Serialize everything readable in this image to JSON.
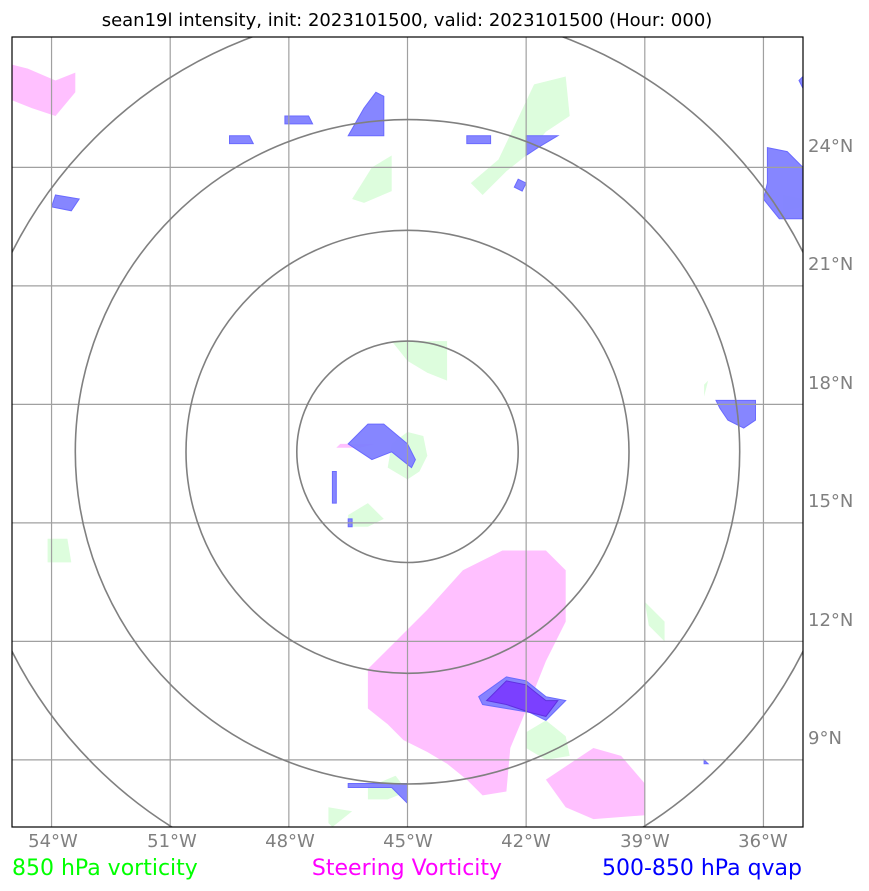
{
  "title": "sean19l intensity, init: 2023101500, valid: 2023101500 (Hour: 000)",
  "lon_labels": [
    "54°W",
    "51°W",
    "48°W",
    "45°W",
    "42°W",
    "39°W",
    "36°W"
  ],
  "lat_labels": [
    "24°N",
    "21°N",
    "18°N",
    "15°N",
    "12°N",
    "9°N"
  ],
  "legend": {
    "vort850": {
      "label": "850 hPa vorticity",
      "color": "#00ff00"
    },
    "steering": {
      "label": "Steering Vorticity",
      "color": "#ff00ff"
    },
    "qvap": {
      "label": "500-850 hPa qvap",
      "color": "#0000ff"
    }
  },
  "colors": {
    "vort850_fill": "#ddfddd",
    "steering_fill": "#ffc0ff",
    "qvap_fill": "#8080ff",
    "overlap_fill": "#7a3cff",
    "ring": "#808080",
    "grid": "#a0a0a0"
  },
  "map_extent": {
    "lon_min": -55.0,
    "lon_max": -35.0,
    "lat_min": 7.3,
    "lat_max": 27.3
  },
  "center": {
    "lon": -45.0,
    "lat": 16.8
  },
  "range_ring_radii_deg": [
    2.8,
    5.6,
    8.4,
    11.2
  ],
  "vort850_polygons": [
    [
      [
        -42.7,
        24.2
      ],
      [
        -41.8,
        26.1
      ],
      [
        -41.0,
        26.3
      ],
      [
        -40.9,
        25.3
      ],
      [
        -41.5,
        24.9
      ],
      [
        -42.0,
        24.3
      ],
      [
        -42.5,
        23.9
      ],
      [
        -43.1,
        23.3
      ],
      [
        -43.4,
        23.6
      ]
    ],
    [
      [
        -46.4,
        23.2
      ],
      [
        -45.9,
        24.0
      ],
      [
        -45.4,
        24.3
      ],
      [
        -45.4,
        23.4
      ],
      [
        -46.1,
        23.1
      ]
    ],
    [
      [
        -45.4,
        19.6
      ],
      [
        -44.0,
        19.6
      ],
      [
        -44.0,
        18.6
      ],
      [
        -44.5,
        18.8
      ],
      [
        -45.0,
        19.1
      ]
    ],
    [
      [
        -45.5,
        16.4
      ],
      [
        -45.0,
        16.1
      ],
      [
        -44.7,
        16.3
      ],
      [
        -44.5,
        16.7
      ],
      [
        -44.6,
        17.2
      ],
      [
        -45.0,
        17.3
      ],
      [
        -45.4,
        17.0
      ]
    ],
    [
      [
        -46.5,
        15.2
      ],
      [
        -46.0,
        15.5
      ],
      [
        -45.6,
        15.1
      ],
      [
        -46.0,
        14.9
      ],
      [
        -46.5,
        14.9
      ]
    ],
    [
      [
        -54.1,
        14.6
      ],
      [
        -53.6,
        14.6
      ],
      [
        -53.5,
        14.0
      ],
      [
        -54.1,
        14.0
      ]
    ],
    [
      [
        -39.0,
        13.0
      ],
      [
        -38.5,
        12.5
      ],
      [
        -38.5,
        12.0
      ],
      [
        -38.9,
        12.4
      ]
    ],
    [
      [
        -41.5,
        10.0
      ],
      [
        -41.0,
        9.6
      ],
      [
        -40.9,
        9.1
      ],
      [
        -41.5,
        9.0
      ],
      [
        -42.0,
        9.3
      ],
      [
        -42.0,
        9.7
      ]
    ],
    [
      [
        -46.0,
        8.3
      ],
      [
        -45.3,
        8.6
      ],
      [
        -45.0,
        8.2
      ],
      [
        -45.5,
        8.0
      ],
      [
        -46.0,
        8.0
      ]
    ],
    [
      [
        -47.0,
        7.8
      ],
      [
        -46.4,
        7.7
      ],
      [
        -46.9,
        7.3
      ],
      [
        -47.0,
        7.4
      ]
    ],
    [
      [
        -37.5,
        18.2
      ],
      [
        -37.4,
        18.6
      ],
      [
        -37.5,
        18.5
      ]
    ],
    [
      [
        -35.5,
        23.3
      ],
      [
        -35.0,
        23.2
      ],
      [
        -35.0,
        23.0
      ],
      [
        -35.5,
        22.9
      ]
    ]
  ],
  "steering_polygons": [
    [
      [
        -55.0,
        26.6
      ],
      [
        -54.6,
        26.5
      ],
      [
        -53.9,
        26.2
      ],
      [
        -53.4,
        26.4
      ],
      [
        -53.4,
        25.9
      ],
      [
        -53.9,
        25.3
      ],
      [
        -54.5,
        25.5
      ],
      [
        -55.0,
        25.7
      ]
    ],
    [
      [
        -46.0,
        11.3
      ],
      [
        -44.5,
        12.8
      ],
      [
        -43.6,
        13.8
      ],
      [
        -42.6,
        14.3
      ],
      [
        -41.5,
        14.3
      ],
      [
        -41.0,
        13.8
      ],
      [
        -41.0,
        12.5
      ],
      [
        -41.5,
        11.5
      ],
      [
        -41.9,
        10.5
      ],
      [
        -42.4,
        9.3
      ],
      [
        -42.5,
        8.2
      ],
      [
        -43.1,
        8.1
      ],
      [
        -43.5,
        8.5
      ],
      [
        -44.0,
        8.9
      ],
      [
        -44.5,
        9.2
      ],
      [
        -45.1,
        9.5
      ],
      [
        -45.5,
        9.9
      ],
      [
        -46.0,
        10.3
      ],
      [
        -46.0,
        10.9
      ]
    ],
    [
      [
        -41.5,
        8.5
      ],
      [
        -40.3,
        9.3
      ],
      [
        -39.6,
        9.1
      ],
      [
        -39.0,
        8.4
      ],
      [
        -39.0,
        7.6
      ],
      [
        -40.3,
        7.5
      ],
      [
        -41.0,
        7.8
      ]
    ],
    [
      [
        -46.7,
        17.0
      ],
      [
        -45.8,
        17.0
      ],
      [
        -46.2,
        16.9
      ],
      [
        -46.8,
        16.9
      ]
    ]
  ],
  "qvap_polygons": [
    [
      [
        -46.5,
        24.8
      ],
      [
        -46.1,
        25.5
      ],
      [
        -45.8,
        25.9
      ],
      [
        -45.6,
        25.8
      ],
      [
        -45.6,
        24.8
      ]
    ],
    [
      [
        -48.1,
        25.3
      ],
      [
        -47.5,
        25.3
      ],
      [
        -47.4,
        25.1
      ],
      [
        -48.1,
        25.1
      ]
    ],
    [
      [
        -49.5,
        24.8
      ],
      [
        -49.0,
        24.8
      ],
      [
        -48.9,
        24.6
      ],
      [
        -49.5,
        24.6
      ]
    ],
    [
      [
        -53.9,
        23.3
      ],
      [
        -53.3,
        23.2
      ],
      [
        -53.5,
        22.9
      ],
      [
        -54.0,
        23.0
      ]
    ],
    [
      [
        -43.5,
        24.8
      ],
      [
        -42.9,
        24.8
      ],
      [
        -42.9,
        24.6
      ],
      [
        -43.5,
        24.6
      ]
    ],
    [
      [
        -42.0,
        24.8
      ],
      [
        -41.2,
        24.8
      ],
      [
        -41.7,
        24.5
      ],
      [
        -42.0,
        24.3
      ]
    ],
    [
      [
        -42.2,
        23.7
      ],
      [
        -42.0,
        23.6
      ],
      [
        -42.1,
        23.4
      ],
      [
        -42.3,
        23.5
      ]
    ],
    [
      [
        -35.9,
        24.5
      ],
      [
        -35.4,
        24.4
      ],
      [
        -35.0,
        24.0
      ],
      [
        -35.0,
        22.7
      ],
      [
        -35.6,
        22.7
      ],
      [
        -36.0,
        23.2
      ],
      [
        -35.9,
        23.6
      ]
    ],
    [
      [
        -37.2,
        18.1
      ],
      [
        -36.2,
        18.1
      ],
      [
        -36.2,
        17.6
      ],
      [
        -36.5,
        17.4
      ],
      [
        -36.9,
        17.6
      ],
      [
        -37.1,
        17.9
      ]
    ],
    [
      [
        -46.5,
        17.0
      ],
      [
        -46.0,
        17.5
      ],
      [
        -45.6,
        17.5
      ],
      [
        -45.0,
        17.0
      ],
      [
        -44.8,
        16.6
      ],
      [
        -44.9,
        16.4
      ],
      [
        -45.4,
        16.8
      ],
      [
        -45.9,
        16.6
      ]
    ],
    [
      [
        -46.9,
        16.3
      ],
      [
        -46.8,
        16.3
      ],
      [
        -46.8,
        15.5
      ],
      [
        -46.9,
        15.5
      ]
    ],
    [
      [
        -46.5,
        15.1
      ],
      [
        -46.4,
        15.1
      ],
      [
        -46.4,
        14.9
      ],
      [
        -46.5,
        14.9
      ]
    ],
    [
      [
        -35.0,
        26.3
      ],
      [
        -35.1,
        26.2
      ],
      [
        -35.0,
        26.0
      ]
    ],
    [
      [
        -43.2,
        10.6
      ],
      [
        -42.5,
        11.1
      ],
      [
        -42.0,
        11.0
      ],
      [
        -41.5,
        10.6
      ],
      [
        -41.0,
        10.5
      ],
      [
        -41.5,
        10.0
      ],
      [
        -41.9,
        10.2
      ],
      [
        -42.5,
        10.3
      ],
      [
        -43.1,
        10.4
      ]
    ],
    [
      [
        -46.5,
        8.4
      ],
      [
        -45.0,
        8.4
      ],
      [
        -45.0,
        7.9
      ],
      [
        -45.4,
        8.3
      ],
      [
        -46.5,
        8.3
      ]
    ],
    [
      [
        -37.5,
        9.0
      ],
      [
        -37.4,
        8.9
      ],
      [
        -37.5,
        8.9
      ]
    ]
  ],
  "overlap_polygons": [
    [
      [
        -43.0,
        10.5
      ],
      [
        -42.5,
        11.0
      ],
      [
        -42.0,
        10.9
      ],
      [
        -41.5,
        10.5
      ],
      [
        -41.2,
        10.5
      ],
      [
        -41.5,
        10.1
      ],
      [
        -41.9,
        10.2
      ],
      [
        -42.5,
        10.4
      ]
    ]
  ]
}
